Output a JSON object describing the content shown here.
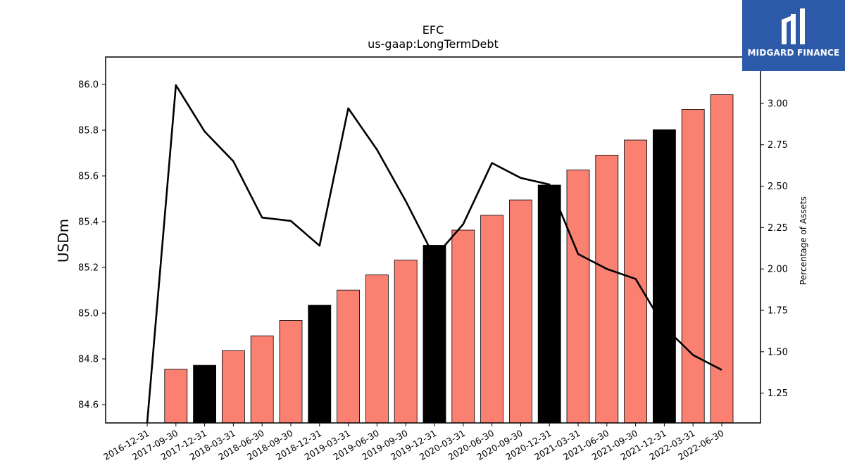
{
  "chart_data": {
    "type": "bar",
    "title": "EFC",
    "subtitle": "us-gaap:LongTermDebt",
    "ylabel": "USDm",
    "y2label": "Percentage of Assets",
    "categories": [
      "2016-12-31",
      "2017-09-30",
      "2017-12-31",
      "2018-03-31",
      "2018-06-30",
      "2018-09-30",
      "2018-12-31",
      "2019-03-31",
      "2019-06-30",
      "2019-09-30",
      "2019-12-31",
      "2020-03-31",
      "2020-06-30",
      "2020-09-30",
      "2020-12-31",
      "2021-03-31",
      "2021-06-30",
      "2021-09-30",
      "2021-12-31",
      "2022-03-31",
      "2022-06-30"
    ],
    "series": [
      {
        "type": "bar",
        "axis": "left",
        "values": [
          null,
          84.755,
          84.772,
          84.836,
          84.901,
          84.968,
          85.035,
          85.101,
          85.167,
          85.232,
          85.297,
          85.363,
          85.428,
          85.495,
          85.56,
          85.626,
          85.691,
          85.757,
          85.802,
          85.891,
          85.955
        ],
        "colors": [
          "#fa8072",
          "#fa8072",
          "#000000",
          "#fa8072",
          "#fa8072",
          "#fa8072",
          "#000000",
          "#fa8072",
          "#fa8072",
          "#fa8072",
          "#000000",
          "#fa8072",
          "#fa8072",
          "#fa8072",
          "#000000",
          "#fa8072",
          "#fa8072",
          "#fa8072",
          "#000000",
          "#fa8072",
          "#fa8072"
        ]
      },
      {
        "type": "line",
        "axis": "right",
        "color": "#000000",
        "values": [
          0.2,
          3.11,
          2.83,
          2.65,
          2.31,
          2.29,
          2.14,
          2.97,
          2.72,
          2.41,
          2.07,
          2.27,
          2.64,
          2.55,
          2.51,
          2.09,
          2.0,
          1.94,
          1.65,
          1.48,
          1.39
        ]
      }
    ],
    "y_ticks": [
      "84.6",
      "84.8",
      "85.0",
      "85.2",
      "85.4",
      "85.6",
      "85.8",
      "86.0"
    ],
    "y2_ticks": [
      "1.25",
      "1.50",
      "1.75",
      "2.00",
      "2.25",
      "2.50",
      "2.75",
      "3.00"
    ],
    "ylim": [
      84.52,
      86.12
    ],
    "y2lim": [
      1.07,
      3.28
    ],
    "grid": false
  },
  "logo": {
    "text": "MIDGARD FINANCE",
    "background": "#2d5aa8"
  }
}
